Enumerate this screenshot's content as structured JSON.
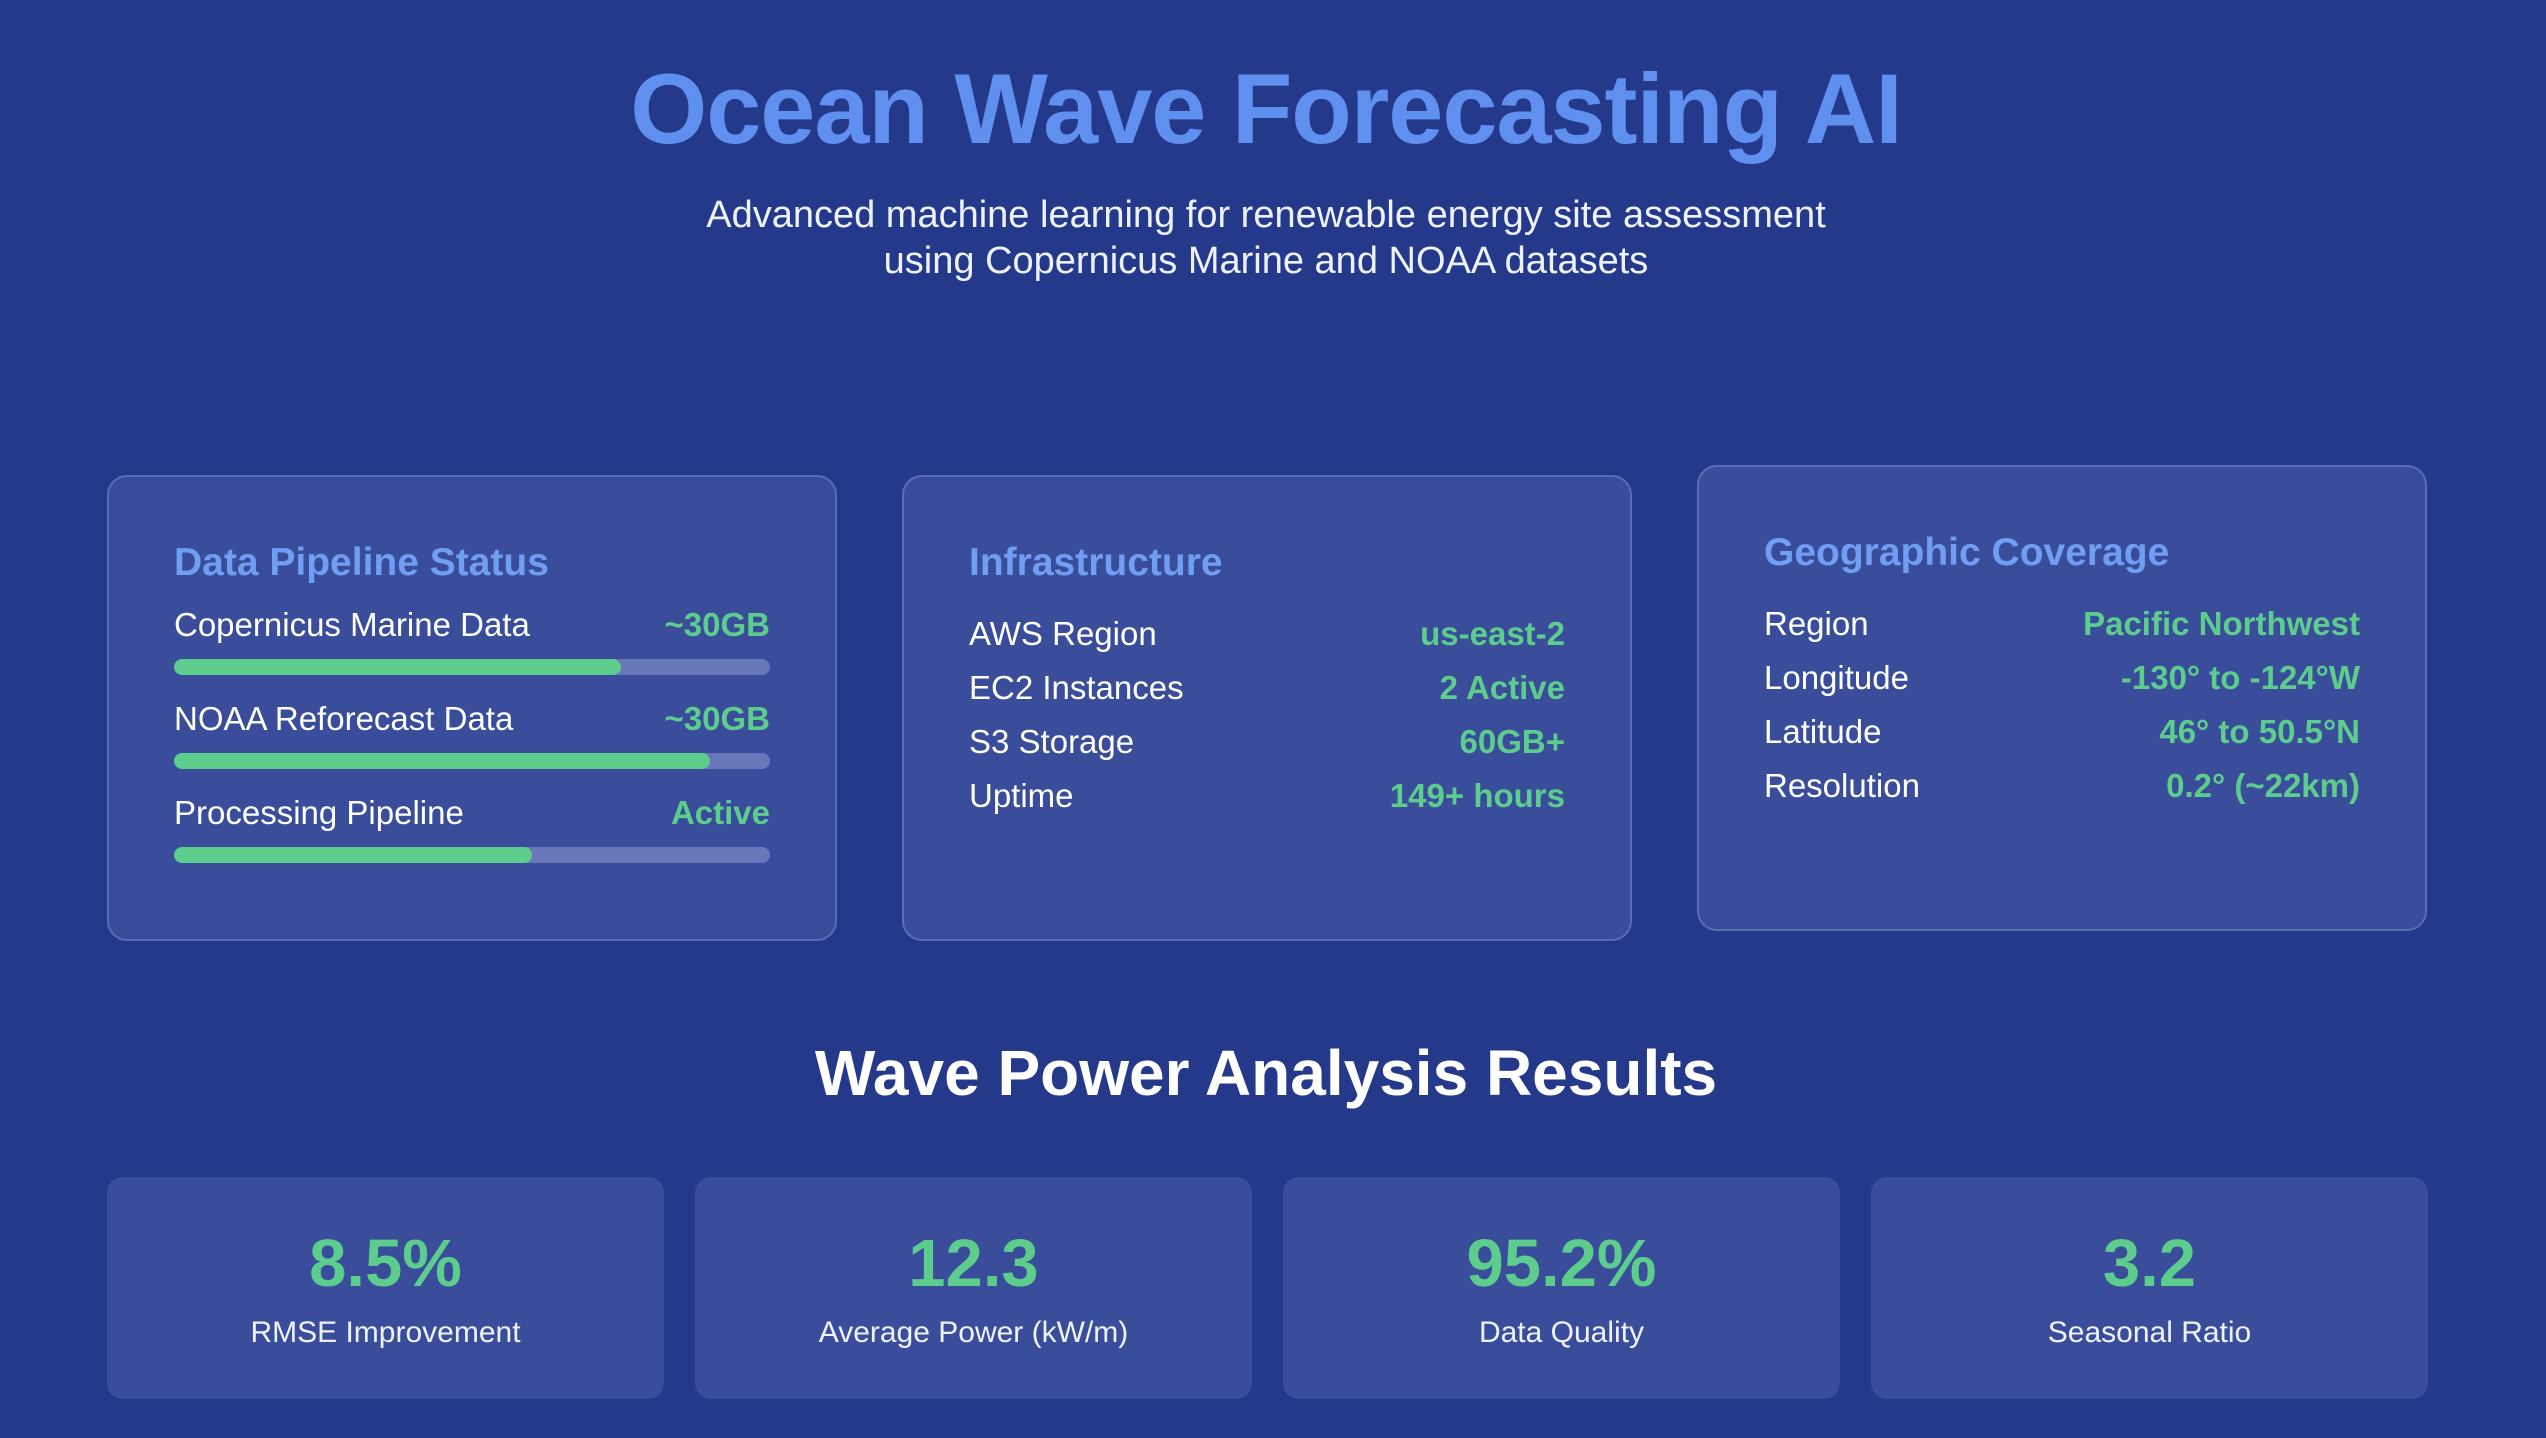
{
  "header": {
    "title": "Ocean Wave Forecasting AI",
    "subtitle_line1": "Advanced machine learning for renewable energy site assessment",
    "subtitle_line2": "using Copernicus Marine and NOAA datasets"
  },
  "pipeline": {
    "title": "Data Pipeline Status",
    "items": [
      {
        "label": "Copernicus Marine Data",
        "value": "~30GB",
        "progress": 0.75
      },
      {
        "label": "NOAA Reforecast Data",
        "value": "~30GB",
        "progress": 0.9
      },
      {
        "label": "Processing Pipeline",
        "value": "Active",
        "progress": 0.6
      }
    ]
  },
  "infrastructure": {
    "title": "Infrastructure",
    "rows": [
      {
        "label": "AWS Region",
        "value": "us-east-2"
      },
      {
        "label": "EC2 Instances",
        "value": "2 Active"
      },
      {
        "label": "S3 Storage",
        "value": "60GB+"
      },
      {
        "label": "Uptime",
        "value": "149+ hours"
      }
    ]
  },
  "geography": {
    "title": "Geographic Coverage",
    "rows": [
      {
        "label": "Region",
        "value": "Pacific Northwest"
      },
      {
        "label": "Longitude",
        "value": "-130° to -124°W"
      },
      {
        "label": "Latitude",
        "value": "46° to 50.5°N"
      },
      {
        "label": "Resolution",
        "value": "0.2° (~22km)"
      }
    ]
  },
  "results": {
    "title": "Wave Power Analysis Results",
    "metrics": [
      {
        "value": "8.5%",
        "label": "RMSE Improvement"
      },
      {
        "value": "12.3",
        "label": "Average Power (kW/m)"
      },
      {
        "value": "95.2%",
        "label": "Data Quality"
      },
      {
        "value": "3.2",
        "label": "Seasonal Ratio"
      }
    ]
  },
  "colors": {
    "background": "#24398a",
    "title": "#5f8fef",
    "card": "#3a4d9b",
    "accent_green": "#5ccd8d",
    "card_heading": "#6f9ef3"
  }
}
